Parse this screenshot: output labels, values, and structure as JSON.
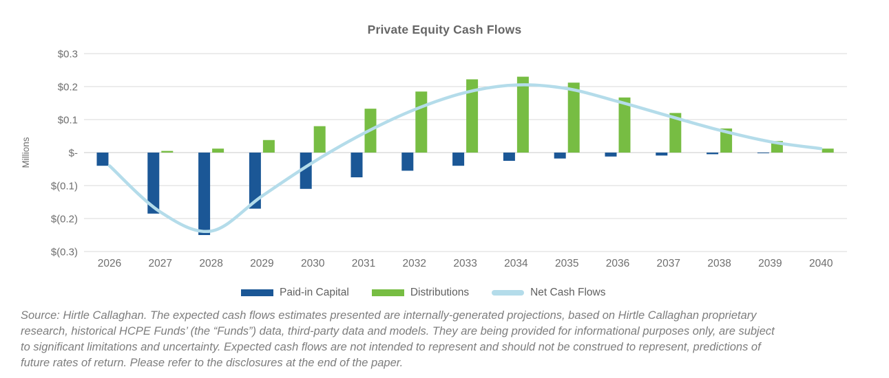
{
  "chart_data": {
    "type": "combo-bar-line",
    "title": "Private Equity Cash Flows",
    "ylabel": "Millions",
    "xlabel": "",
    "categories": [
      "2026",
      "2027",
      "2028",
      "2029",
      "2030",
      "2031",
      "2032",
      "2033",
      "2034",
      "2035",
      "2036",
      "2037",
      "2038",
      "2039",
      "2040"
    ],
    "series": [
      {
        "name": "Paid-in Capital",
        "type": "bar",
        "color": "#1b5796",
        "values": [
          -0.04,
          -0.185,
          -0.25,
          -0.17,
          -0.11,
          -0.075,
          -0.055,
          -0.04,
          -0.025,
          -0.018,
          -0.012,
          -0.009,
          -0.005,
          -0.002,
          0
        ]
      },
      {
        "name": "Distributions",
        "type": "bar",
        "color": "#77bd43",
        "values": [
          0,
          0.005,
          0.012,
          0.038,
          0.08,
          0.133,
          0.185,
          0.222,
          0.23,
          0.212,
          0.167,
          0.12,
          0.073,
          0.035,
          0.012
        ]
      },
      {
        "name": "Net Cash Flows",
        "type": "line",
        "color": "#b4dcea",
        "values": [
          -0.04,
          -0.18,
          -0.238,
          -0.132,
          -0.03,
          0.058,
          0.13,
          0.182,
          0.205,
          0.194,
          0.155,
          0.111,
          0.068,
          0.033,
          0.012
        ]
      }
    ],
    "ylim": [
      -0.3,
      0.3
    ],
    "ytick_values": [
      0.3,
      0.2,
      0.1,
      0,
      -0.1,
      -0.2,
      -0.3
    ],
    "ytick_labels": [
      "$0.3",
      "$0.2",
      "$0.1",
      "$-",
      "$(0.1)",
      "$(0.2)",
      "$(0.3)"
    ],
    "grid": true,
    "legend_position": "bottom",
    "colors": {
      "grid": "#d9d9d9",
      "zero_line": "#c9c9c9",
      "axis_text": "#6e6e6e"
    }
  },
  "source_note": {
    "lines": [
      "Source: Hirtle Callaghan. The expected cash flows estimates presented are internally-generated projections, based on Hirtle Callaghan proprietary",
      "research, historical HCPE Funds’ (the “Funds”) data, third-party data and models. They are being provided for informational purposes only, are subject",
      "to significant limitations and uncertainty. Expected cash flows are not intended to represent and should not be construed to represent, predictions of",
      "future rates of return. Please refer to the disclosures at the end of the paper."
    ]
  }
}
